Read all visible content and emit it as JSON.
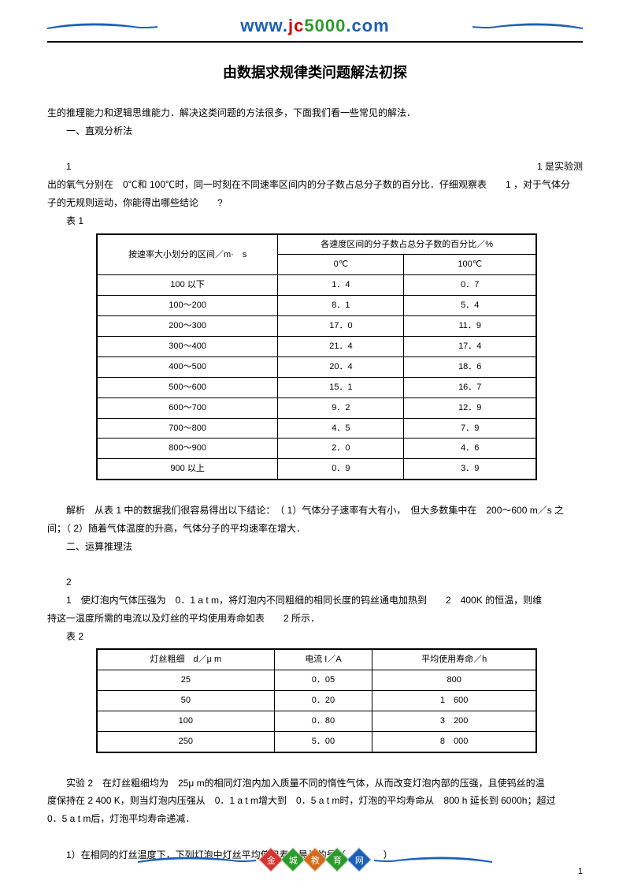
{
  "logo": {
    "text_parts": [
      "www.",
      "j",
      "c",
      "5",
      "0",
      "0",
      "0",
      ".com"
    ],
    "colors": [
      "#1b5fb8",
      "#d40000",
      "#d40000",
      "#2a9a2a",
      "#2a9a2a",
      "#2a9a2a",
      "#2a9a2a",
      "#1b5fb8"
    ]
  },
  "title": "由数据求规律类问题解法初探",
  "intro": "生的推理能力和逻辑思维能力．解决这类问题的方法很多，下面我们看一些常见的解法．",
  "section1_heading": "一、直观分析法",
  "ex1_num": "1",
  "ex1_right": "1 是实验测",
  "ex1_line2": "出的氧气分别在　0℃和 100℃时，同一时刻在不同速率区间内的分子数占总分子数的百分比．仔细观察表　　1 ，对于气体分",
  "ex1_line3": "子的无规则运动，你能得出哪些结论　　?",
  "table1_caption": "表 1",
  "table1": {
    "header_left": "按速率大小划分的区间／m·　s",
    "header_right": "各速度区间的分子数占总分子数的百分比／%",
    "sub_a": "0℃",
    "sub_b": "100℃",
    "rows": [
      [
        "100 以下",
        "1．4",
        "0．7"
      ],
      [
        "100～200",
        "8．1",
        "5．4"
      ],
      [
        "200～300",
        "17．0",
        "11．9"
      ],
      [
        "300～400",
        "21．4",
        "17．4"
      ],
      [
        "400～500",
        "20．4",
        "18．6"
      ],
      [
        "500～600",
        "15．1",
        "16．7"
      ],
      [
        "600～700",
        "9．2",
        "12．9"
      ],
      [
        "700～800",
        "4．5",
        "7．9"
      ],
      [
        "800～900",
        "2．0",
        "4．6"
      ],
      [
        "900 以上",
        "0．9",
        "3．9"
      ]
    ]
  },
  "analysis1_a": "解析　从表 1 中的数据我们很容易得出以下结论：　（ 1）气体分子速率有大有小，　但大多数集中在　200～600 m／s 之",
  "analysis1_b": "间；（ 2）随着气体温度的升高，气体分子的平均速率在增大．",
  "section2_heading": "二、运算推理法",
  "ex2_num": "2",
  "ex2_line1": "1　使灯泡内气体压强为　0．1 a t m，将灯泡内不同粗细的相同长度的钨丝通电加热到　　2　400K 的恒温，则维",
  "ex2_line2": "持这一温度所需的电流以及灯丝的平均使用寿命如表　　2 所示．",
  "table2_caption": "表 2",
  "table2": {
    "headers": [
      "灯丝粗细　d／μ m",
      "电流 I／A",
      "平均使用寿命／h"
    ],
    "rows": [
      [
        "25",
        "0．05",
        "800"
      ],
      [
        "50",
        "0．20",
        "1　600"
      ],
      [
        "100",
        "0．80",
        "3　200"
      ],
      [
        "250",
        "5．00",
        "8　000"
      ]
    ]
  },
  "exp2_a": "实验 2　在灯丝粗细均为　25μ m的相同灯泡内加入质量不同的惰性气体，从而改变灯泡内部的压强，且使钨丝的温",
  "exp2_b": "度保持在 2 400 K，则当灯泡内压强从　0．1 a t m增大到　0．5 a t m时，灯泡的平均寿命从　800 h 延长到 6000h；超过",
  "exp2_c": "0．5 a t m后，灯泡平均寿命递减．",
  "q1": "1）在相同的灯丝温度下，下列灯泡中灯丝平均使用寿命最长的是（　　　　）",
  "footer_chars": [
    "金",
    "城",
    "教",
    "育",
    "网"
  ],
  "footer_colors": [
    "#d4342f",
    "#2a9a2a",
    "#d46a1a",
    "#2a9a2a",
    "#1b5fb8"
  ],
  "page_number": "1",
  "swoosh_color": "#1b5fb8"
}
